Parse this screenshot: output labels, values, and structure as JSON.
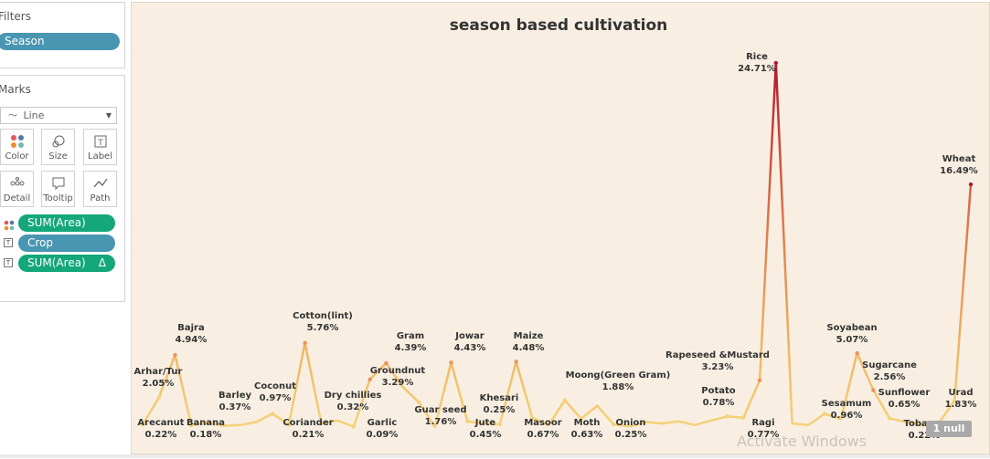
{
  "filters": {
    "title": "Filters",
    "pill": "Season"
  },
  "marks": {
    "title": "Marks",
    "type": "Line",
    "cards": [
      {
        "label": "Color",
        "icon": "color-dots-icon"
      },
      {
        "label": "Size",
        "icon": "size-icon"
      },
      {
        "label": "Label",
        "icon": "label-icon"
      },
      {
        "label": "Detail",
        "icon": "detail-icon"
      },
      {
        "label": "Tooltip",
        "icon": "tooltip-icon"
      },
      {
        "label": "Path",
        "icon": "path-icon"
      }
    ],
    "shelf": [
      {
        "text": "SUM(Area)",
        "color": "#13a77a",
        "icon": "color-dots-icon"
      },
      {
        "text": "Crop",
        "color": "#4996b2",
        "icon": "text-icon"
      },
      {
        "text": "SUM(Area)",
        "color": "#13a77a",
        "icon": "text-icon",
        "delta": "Δ"
      }
    ]
  },
  "null_indicator": "1 null",
  "watermark": "Activate Windows",
  "chart_data": {
    "type": "line",
    "title": "season based cultivation",
    "yunit": "%",
    "ylim": [
      0,
      26
    ],
    "colors": {
      "low": "#f6d27a",
      "mid": "#e9925a",
      "high": "#b5172f"
    },
    "labeled_points": [
      {
        "crop": "Arecanut",
        "value": 0.22,
        "label": "0.22%"
      },
      {
        "crop": "Arhar/Tur",
        "value": 2.05,
        "label": "2.05%"
      },
      {
        "crop": "Bajra",
        "value": 4.94,
        "label": "4.94%"
      },
      {
        "crop": "Banana",
        "value": 0.18,
        "label": "0.18%"
      },
      {
        "crop": "Barley",
        "value": 0.37,
        "label": "0.37%"
      },
      {
        "crop": "Coconut",
        "value": 0.97,
        "label": "0.97%"
      },
      {
        "crop": "Coriander",
        "value": 0.21,
        "label": "0.21%"
      },
      {
        "crop": "Cotton(lint)",
        "value": 5.76,
        "label": "5.76%"
      },
      {
        "crop": "Dry chillies",
        "value": 0.32,
        "label": "0.32%"
      },
      {
        "crop": "Garlic",
        "value": 0.09,
        "label": "0.09%"
      },
      {
        "crop": "Groundnut",
        "value": 3.29,
        "label": "3.29%"
      },
      {
        "crop": "Gram",
        "value": 4.39,
        "label": "4.39%"
      },
      {
        "crop": "Guar seed",
        "value": 1.76,
        "label": "1.76%"
      },
      {
        "crop": "Jowar",
        "value": 4.43,
        "label": "4.43%"
      },
      {
        "crop": "Jute",
        "value": 0.45,
        "label": "0.45%"
      },
      {
        "crop": "Khesari",
        "value": 0.25,
        "label": "0.25%"
      },
      {
        "crop": "Maize",
        "value": 4.48,
        "label": "4.48%"
      },
      {
        "crop": "Masoor",
        "value": 0.67,
        "label": "0.67%"
      },
      {
        "crop": "Moth",
        "value": 0.63,
        "label": "0.63%"
      },
      {
        "crop": "Moong(Green Gram)",
        "value": 1.88,
        "label": "1.88%"
      },
      {
        "crop": "Onion",
        "value": 0.25,
        "label": "0.25%"
      },
      {
        "crop": "Rapeseed &Mustard",
        "value": 3.23,
        "label": "3.23%"
      },
      {
        "crop": "Potato",
        "value": 0.78,
        "label": "0.78%"
      },
      {
        "crop": "Ragi",
        "value": 0.77,
        "label": "0.77%"
      },
      {
        "crop": "Rice",
        "value": 24.71,
        "label": "24.71%"
      },
      {
        "crop": "Sesamum",
        "value": 0.96,
        "label": "0.96%"
      },
      {
        "crop": "Soyabean",
        "value": 5.07,
        "label": "5.07%"
      },
      {
        "crop": "Sugarcane",
        "value": 2.56,
        "label": "2.56%"
      },
      {
        "crop": "Sunflower",
        "value": 0.65,
        "label": "0.65%"
      },
      {
        "crop": "Tobacco",
        "value": 0.22,
        "label": "0.22%"
      },
      {
        "crop": "Urad",
        "value": 1.83,
        "label": "1.83%"
      },
      {
        "crop": "Wheat",
        "value": 16.49,
        "label": "16.49%"
      }
    ],
    "line_values": [
      0.22,
      2.05,
      4.94,
      0.18,
      0.37,
      0.15,
      0.2,
      0.4,
      0.97,
      0.21,
      5.76,
      0.32,
      0.5,
      0.09,
      3.29,
      4.39,
      2.8,
      1.76,
      0.08,
      4.43,
      0.45,
      0.3,
      0.25,
      4.48,
      0.67,
      0.2,
      1.88,
      0.63,
      1.5,
      0.25,
      0.1,
      0.4,
      0.3,
      0.45,
      0.2,
      0.5,
      0.78,
      0.7,
      3.23,
      24.71,
      0.3,
      0.2,
      0.96,
      0.6,
      5.07,
      2.56,
      0.65,
      0.4,
      0.22,
      0.3,
      1.83,
      16.49
    ]
  }
}
